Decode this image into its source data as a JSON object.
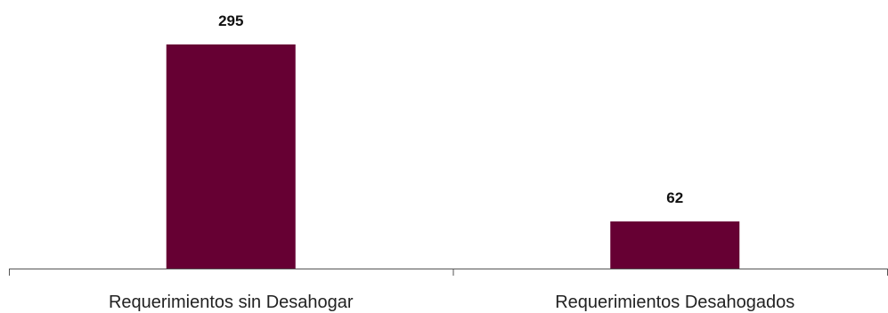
{
  "chart_data": {
    "type": "bar",
    "categories": [
      "Requerimientos sin Desahogar",
      "Requerimientos Desahogados"
    ],
    "values": [
      295,
      62
    ],
    "data_labels": [
      "295",
      "62"
    ],
    "title": "",
    "xlabel": "",
    "ylabel": "",
    "ylim": [
      0,
      295
    ],
    "grid": false,
    "legend": "none",
    "colors": {
      "bar": "#660033",
      "axis": "#555555",
      "background": "#ffffff"
    }
  }
}
